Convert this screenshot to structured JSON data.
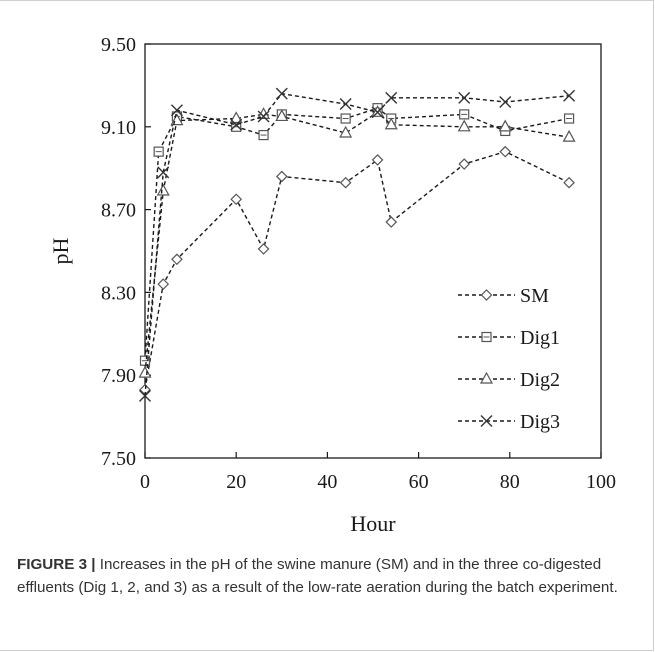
{
  "chart_data": {
    "type": "line",
    "xlabel": "Hour",
    "ylabel": "pH",
    "xlim": [
      0,
      100
    ],
    "ylim": [
      7.5,
      9.5
    ],
    "xticks": [
      "0",
      "20",
      "40",
      "60",
      "80",
      "100"
    ],
    "yticks": [
      "7.50",
      "7.90",
      "8.30",
      "8.70",
      "9.10",
      "9.50"
    ],
    "grid": false,
    "legend": "bottom-right",
    "line_style": "dashed",
    "series": [
      {
        "name": "SM",
        "marker": "diamond",
        "x": [
          0,
          4,
          7,
          20,
          26,
          30,
          44,
          51,
          54,
          70,
          79,
          93
        ],
        "y": [
          7.83,
          8.34,
          8.46,
          8.75,
          8.51,
          8.86,
          8.83,
          8.94,
          8.64,
          8.92,
          8.98,
          8.83
        ]
      },
      {
        "name": "Dig1",
        "marker": "square",
        "x": [
          0,
          3,
          7,
          20,
          26,
          30,
          44,
          51,
          54,
          70,
          79,
          93
        ],
        "y": [
          7.97,
          8.98,
          9.15,
          9.1,
          9.06,
          9.16,
          9.14,
          9.19,
          9.14,
          9.16,
          9.08,
          9.14
        ]
      },
      {
        "name": "Dig2",
        "marker": "triangle",
        "x": [
          0,
          4,
          7,
          20,
          26,
          30,
          44,
          51,
          54,
          70,
          79,
          93
        ],
        "y": [
          7.91,
          8.79,
          9.13,
          9.14,
          9.16,
          9.15,
          9.07,
          9.17,
          9.11,
          9.1,
          9.1,
          9.05
        ]
      },
      {
        "name": "Dig3",
        "marker": "x",
        "x": [
          0,
          4,
          7,
          20,
          26,
          30,
          44,
          51,
          54,
          70,
          79,
          93
        ],
        "y": [
          7.8,
          8.88,
          9.18,
          9.11,
          9.15,
          9.26,
          9.21,
          9.17,
          9.24,
          9.24,
          9.22,
          9.25
        ]
      }
    ]
  },
  "caption": {
    "label": "FIGURE 3 |",
    "text": " Increases in the pH of the swine manure (SM) and in the three co-digested effluents (Dig 1, 2, and 3) as a result of the low-rate aeration during the batch experiment."
  }
}
